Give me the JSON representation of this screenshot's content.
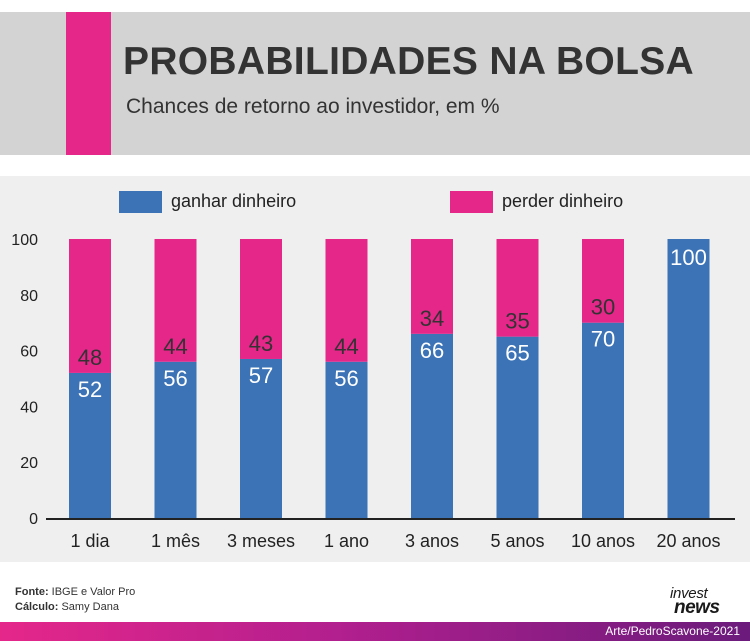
{
  "title": "PROBABILIDADES NA BOLSA",
  "subtitle": "Chances de retorno ao investidor, em %",
  "colors": {
    "ganhar": "#3b73b6",
    "perder": "#e5278a",
    "header_bg": "#d3d3d3",
    "chart_bg": "#efefef"
  },
  "chart_data": {
    "type": "bar",
    "stacked": true,
    "categories": [
      "1 dia",
      "1 mês",
      "3 meses",
      "1 ano",
      "3 anos",
      "5 anos",
      "10 anos",
      "20 anos"
    ],
    "series": [
      {
        "name": "ganhar dinheiro",
        "values": [
          52,
          56,
          57,
          56,
          66,
          65,
          70,
          100
        ]
      },
      {
        "name": "perder dinheiro",
        "values": [
          48,
          44,
          43,
          44,
          34,
          35,
          30,
          0
        ]
      }
    ],
    "ylim": [
      0,
      100
    ],
    "yticks": [
      0,
      20,
      40,
      60,
      80,
      100
    ],
    "grid": false,
    "legend_position": "top"
  },
  "footer": {
    "fonte_label": "Fonte:",
    "fonte_value": " IBGE e Valor Pro",
    "calculo_label": "Cálculo:",
    "calculo_value": " Samy Dana",
    "logo_top": "invest",
    "logo_bottom": "news",
    "credit": "Arte/PedroScavone-2021"
  }
}
